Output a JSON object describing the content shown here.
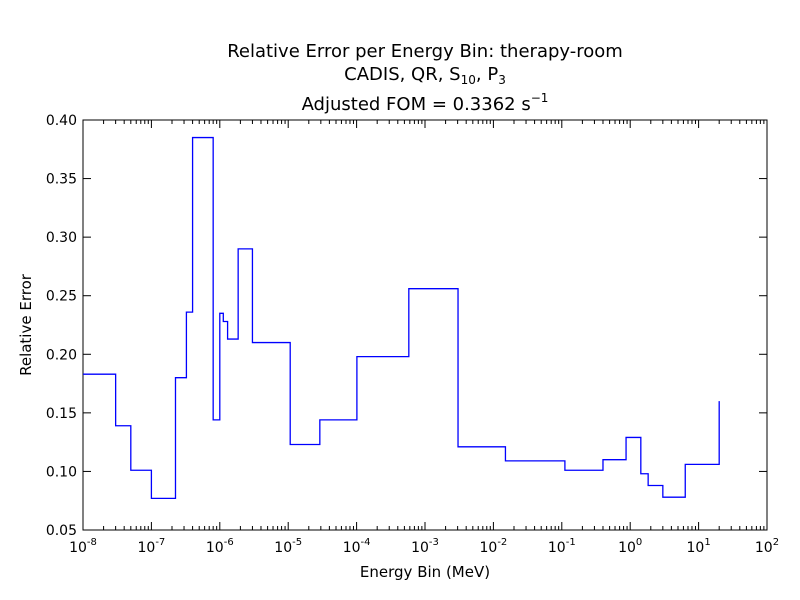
{
  "chart_data": {
    "type": "line",
    "drawstyle": "steps",
    "title_lines": [
      "Relative Error per Energy Bin: therapy-room",
      "CADIS, QR, S10, P3",
      "Adjusted FOM = 0.3362 s-1"
    ],
    "title_parts": {
      "line1": "Relative Error per Energy Bin: therapy-room",
      "line2_prefix": "CADIS, QR, S",
      "line2_s_sub": "10",
      "line2_mid": ", P",
      "line2_p_sub": "3",
      "line3_prefix": "Adjusted FOM = 0.3362 s",
      "line3_sup": "−1"
    },
    "xlabel": "Energy Bin (MeV)",
    "ylabel": "Relative Error",
    "xscale": "log",
    "xlim": [
      1e-08,
      100
    ],
    "ylim": [
      0.05,
      0.4
    ],
    "xticks": [
      {
        "exp": "-8"
      },
      {
        "exp": "-7"
      },
      {
        "exp": "-6"
      },
      {
        "exp": "-5"
      },
      {
        "exp": "-4"
      },
      {
        "exp": "-3"
      },
      {
        "exp": "-2"
      },
      {
        "exp": "-1"
      },
      {
        "exp": "0"
      },
      {
        "exp": "1"
      },
      {
        "exp": "2"
      }
    ],
    "yticks": [
      "0.05",
      "0.10",
      "0.15",
      "0.20",
      "0.25",
      "0.30",
      "0.35",
      "0.40"
    ],
    "series": [
      {
        "color": "#0000ff",
        "x": [
          1e-08,
          3e-08,
          5e-08,
          1e-07,
          2.25e-07,
          3.25e-07,
          4e-07,
          8e-07,
          1e-06,
          1.125e-06,
          1.3e-06,
          1.855e-06,
          3e-06,
          1.07e-05,
          2.9e-05,
          0.000101,
          0.00058,
          0.00304,
          0.015,
          0.111,
          0.4,
          0.87,
          1.43,
          1.83,
          3.0,
          6.38,
          20
        ],
        "y": [
          0.183,
          0.139,
          0.101,
          0.077,
          0.18,
          0.236,
          0.385,
          0.144,
          0.235,
          0.228,
          0.213,
          0.29,
          0.21,
          0.123,
          0.144,
          0.198,
          0.256,
          0.121,
          0.109,
          0.101,
          0.11,
          0.129,
          0.098,
          0.088,
          0.078,
          0.106,
          0.16
        ]
      }
    ],
    "grid": false,
    "legend": "none"
  }
}
